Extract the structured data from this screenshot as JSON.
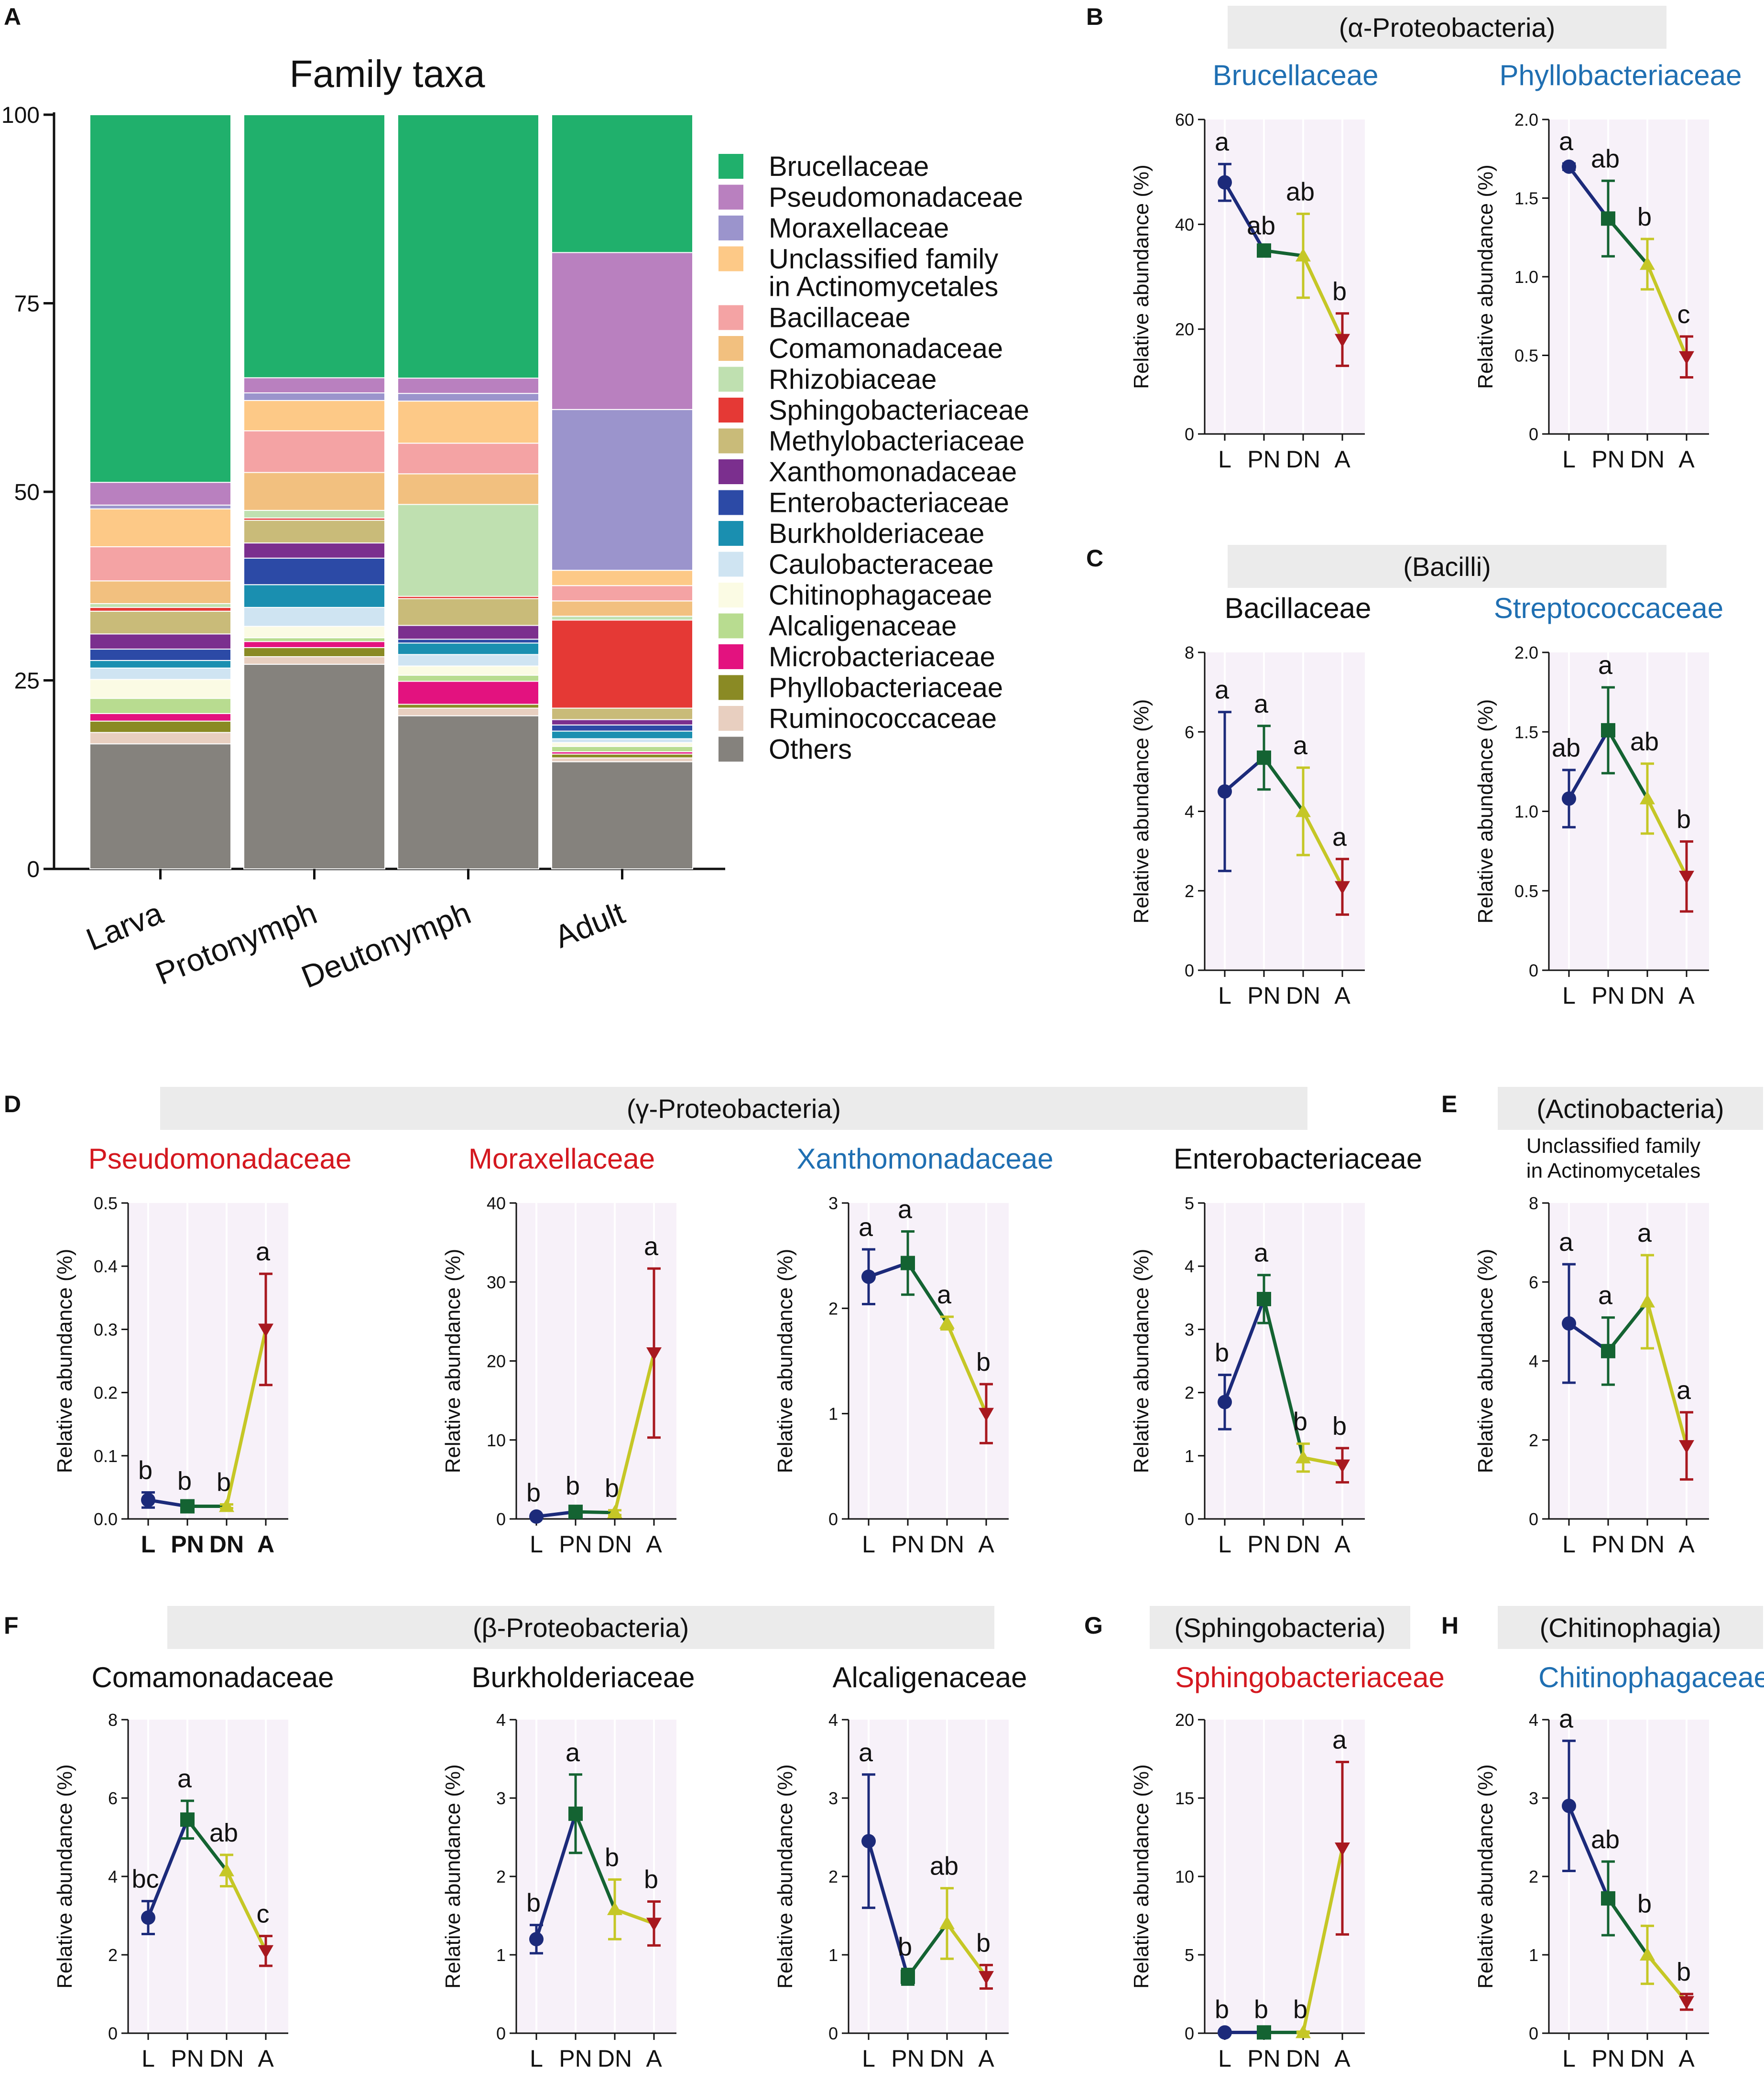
{
  "chart_data": [
    {
      "panel": "A",
      "type": "stacked-bar",
      "title": "Family taxa",
      "categories": [
        "Larva",
        "Protonymph",
        "Deutonymph",
        "Adult"
      ],
      "ylim": [
        0,
        100
      ],
      "yticks": [
        0,
        25,
        50,
        75,
        100
      ],
      "series": [
        {
          "name": "Others",
          "color": "#85827d",
          "values": [
            16.5,
            27,
            20,
            14
          ]
        },
        {
          "name": "Ruminococcaceae",
          "color": "#e8cfc0",
          "values": [
            1.5,
            1,
            1,
            0.5
          ]
        },
        {
          "name": "Phyllobacteriaceae",
          "color": "#8a8a24",
          "values": [
            1.5,
            1.2,
            0.5,
            0.5
          ]
        },
        {
          "name": "Microbacteriaceae",
          "color": "#e3127f",
          "values": [
            1,
            0.8,
            3,
            0.3
          ]
        },
        {
          "name": "Alcaligenaceae",
          "color": "#b8dc90",
          "values": [
            2,
            0.5,
            0.8,
            0.7
          ]
        },
        {
          "name": "Chitinophagaceae",
          "color": "#fbfbe4",
          "values": [
            2.5,
            1.5,
            1.2,
            0.5
          ]
        },
        {
          "name": "Caulobacteraceae",
          "color": "#cfe4f2",
          "values": [
            1.5,
            2.5,
            1.5,
            0.5
          ]
        },
        {
          "name": "Burkholderiaceae",
          "color": "#1a8fb0",
          "values": [
            1,
            3,
            1.5,
            1
          ]
        },
        {
          "name": "Enterobacteriaceae",
          "color": "#2c4aa6",
          "values": [
            1.5,
            3.5,
            0.5,
            0.8
          ]
        },
        {
          "name": "Xanthomonadaceae",
          "color": "#7b2f8e",
          "values": [
            2,
            2,
            1.8,
            0.7
          ]
        },
        {
          "name": "Methylobacteriaceae",
          "color": "#c9bb79",
          "values": [
            3,
            3,
            3.5,
            1.5
          ]
        },
        {
          "name": "Sphingobacteriaceae",
          "color": "#e53935",
          "values": [
            0.5,
            0.3,
            0.3,
            11.5
          ]
        },
        {
          "name": "Rhizobiaceae",
          "color": "#bfe0b0",
          "values": [
            0.5,
            1,
            12,
            0.5
          ]
        },
        {
          "name": "Comamonadaceae",
          "color": "#f2c07f",
          "values": [
            3,
            5,
            4,
            2
          ]
        },
        {
          "name": "Bacillaceae",
          "color": "#f4a3a4",
          "values": [
            4.5,
            5.5,
            4,
            2
          ]
        },
        {
          "name": "Unclassified family in Actinomycetales",
          "color": "#fdc987",
          "values": [
            5,
            4,
            5.5,
            2
          ]
        },
        {
          "name": "Moraxellaceae",
          "color": "#9b94cc",
          "values": [
            0.5,
            1,
            1,
            21
          ]
        },
        {
          "name": "Pseudomonadaceae",
          "color": "#b980bf",
          "values": [
            3,
            2,
            2,
            20.5
          ]
        },
        {
          "name": "Brucellaceae",
          "color": "#20b06c",
          "values": [
            48.5,
            34.7,
            34.4,
            18
          ]
        }
      ],
      "legend_order": [
        "Brucellaceae",
        "Pseudomonadaceae",
        "Moraxellaceae",
        "Unclassified family in Actinomycetales",
        "Bacillaceae",
        "Comamonadaceae",
        "Rhizobiaceae",
        "Sphingobacteriaceae",
        "Methylobacteriaceae",
        "Xanthomonadaceae",
        "Enterobacteriaceae",
        "Burkholderiaceae",
        "Caulobacteraceae",
        "Chitinophagaceae",
        "Alcaligenaceae",
        "Microbacteriaceae",
        "Phyllobacteriaceae",
        "Ruminococcaceae",
        "Others"
      ],
      "legend_lines": [
        [
          "Brucellaceae"
        ],
        [
          "Pseudomonadaceae"
        ],
        [
          "Moraxellaceae"
        ],
        [
          "Unclassified family",
          "in Actinomycetales"
        ],
        [
          "Bacillaceae"
        ],
        [
          "Comamonadaceae"
        ],
        [
          "Rhizobiaceae"
        ],
        [
          "Sphingobacteriaceae"
        ],
        [
          "Methylobacteriaceae"
        ],
        [
          "Xanthomonadaceae"
        ],
        [
          "Enterobacteriaceae"
        ],
        [
          "Burkholderiaceae"
        ],
        [
          "Caulobacteraceae"
        ],
        [
          "Chitinophagaceae"
        ],
        [
          "Alcaligenaceae"
        ],
        [
          "Microbacteriaceae"
        ],
        [
          "Phyllobacteriaceae"
        ],
        [
          "Ruminococcaceae"
        ],
        [
          "Others"
        ]
      ]
    },
    {
      "panel": "B",
      "type": "line",
      "class": "(α-Proteobacteria)",
      "title": "Brucellaceae",
      "title_color": "blue",
      "ylabel": "Relative abundance (%)",
      "ylim": [
        0,
        60
      ],
      "yticks": [
        "0",
        "20",
        "40",
        "60"
      ],
      "x": [
        "L",
        "PN",
        "DN",
        "A"
      ],
      "values": [
        48,
        35,
        34,
        18
      ],
      "errors": [
        3.5,
        0.5,
        8,
        5
      ],
      "letters": [
        "a",
        "ab",
        "ab",
        "b"
      ]
    },
    {
      "panel": "B",
      "type": "line",
      "title": "Phyllobacteriaceae",
      "title_color": "blue",
      "ylabel": "Relative abundance (%)",
      "ylim": [
        0,
        2
      ],
      "yticks": [
        "0",
        "0.5",
        "1.0",
        "1.5",
        "2.0"
      ],
      "x": [
        "L",
        "PN",
        "DN",
        "A"
      ],
      "values": [
        1.7,
        1.37,
        1.08,
        0.49
      ],
      "errors": [
        0.02,
        0.24,
        0.16,
        0.13
      ],
      "letters": [
        "a",
        "ab",
        "b",
        "c"
      ]
    },
    {
      "panel": "C",
      "type": "line",
      "class": "(Bacilli)",
      "title": "Bacillaceae",
      "title_color": "black",
      "ylabel": "Relative abundance (%)",
      "ylim": [
        0,
        8
      ],
      "yticks": [
        "0",
        "2",
        "4",
        "6",
        "8"
      ],
      "x": [
        "L",
        "PN",
        "DN",
        "A"
      ],
      "values": [
        4.5,
        5.35,
        4.0,
        2.1
      ],
      "errors": [
        2.0,
        0.8,
        1.1,
        0.7
      ],
      "letters": [
        "a",
        "a",
        "a",
        "a"
      ]
    },
    {
      "panel": "C",
      "type": "line",
      "title": "Streptococcaceae",
      "title_color": "blue",
      "ylabel": "Relative abundance (%)",
      "ylim": [
        0,
        2
      ],
      "yticks": [
        "0",
        "0.5",
        "1.0",
        "1.5",
        "2.0"
      ],
      "x": [
        "L",
        "PN",
        "DN",
        "A"
      ],
      "values": [
        1.08,
        1.51,
        1.08,
        0.59
      ],
      "errors": [
        0.18,
        0.27,
        0.22,
        0.22
      ],
      "letters": [
        "ab",
        "a",
        "ab",
        "b"
      ]
    },
    {
      "panel": "D",
      "type": "line",
      "class": "(γ-Proteobacteria)",
      "title": "Pseudomonadaceae",
      "title_color": "red",
      "ylabel": "Relative abundance (%)",
      "ylim": [
        0,
        0.5
      ],
      "yticks": [
        "0.0",
        "0.1",
        "0.2",
        "0.3",
        "0.4",
        "0.5"
      ],
      "x": [
        "L",
        "PN",
        "DN",
        "A"
      ],
      "values": [
        0.03,
        0.02,
        0.02,
        0.3
      ],
      "errors": [
        0.012,
        0.005,
        0.003,
        0.088
      ],
      "letters": [
        "b",
        "b",
        "b",
        "a"
      ],
      "bold_x": true
    },
    {
      "panel": "D",
      "type": "line",
      "title": "Moraxellaceae",
      "title_color": "red",
      "ylabel": "Relative abundance (%)",
      "ylim": [
        0,
        40
      ],
      "yticks": [
        "0",
        "10",
        "20",
        "30",
        "40"
      ],
      "x": [
        "L",
        "PN",
        "DN",
        "A"
      ],
      "values": [
        0.3,
        0.9,
        0.8,
        21
      ],
      "errors": [
        0.2,
        0.5,
        0.3,
        10.7
      ],
      "letters": [
        "b",
        "b",
        "b",
        "a"
      ]
    },
    {
      "panel": "D",
      "type": "line",
      "title": "Xanthomonadaceae",
      "title_color": "blue",
      "ylabel": "Relative abundance (%)",
      "ylim": [
        0,
        3
      ],
      "yticks": [
        "0",
        "1",
        "2",
        "3"
      ],
      "x": [
        "L",
        "PN",
        "DN",
        "A"
      ],
      "values": [
        2.3,
        2.43,
        1.86,
        1.0
      ],
      "errors": [
        0.26,
        0.3,
        0.06,
        0.28
      ],
      "letters": [
        "a",
        "a",
        "a",
        "b"
      ]
    },
    {
      "panel": "D",
      "type": "line",
      "title": "Enterobacteriaceae",
      "title_color": "black",
      "ylabel": "Relative abundance (%)",
      "ylim": [
        0,
        5
      ],
      "yticks": [
        "0",
        "1",
        "2",
        "3",
        "4",
        "5"
      ],
      "x": [
        "L",
        "PN",
        "DN",
        "A"
      ],
      "values": [
        1.85,
        3.48,
        0.97,
        0.85
      ],
      "errors": [
        0.43,
        0.38,
        0.22,
        0.27
      ],
      "letters": [
        "b",
        "a",
        "b",
        "b"
      ]
    },
    {
      "panel": "E",
      "type": "line",
      "class": "(Actinobacteria)",
      "title": "Unclassified family",
      "title2": "in Actinomycetales",
      "title_color": "black",
      "ylabel": "Relative abundance (%)",
      "ylim": [
        0,
        8
      ],
      "yticks": [
        "0",
        "2",
        "4",
        "6",
        "8"
      ],
      "x": [
        "L",
        "PN",
        "DN",
        "A"
      ],
      "values": [
        4.95,
        4.25,
        5.5,
        1.85
      ],
      "errors": [
        1.5,
        0.85,
        1.18,
        0.85
      ],
      "letters": [
        "a",
        "a",
        "a",
        "a"
      ]
    },
    {
      "panel": "F",
      "type": "line",
      "class": "(β-Proteobacteria)",
      "title": "Comamonadaceae",
      "title_color": "black",
      "ylabel": "Relative abundance (%)",
      "ylim": [
        0,
        8
      ],
      "yticks": [
        "0",
        "2",
        "4",
        "6",
        "8"
      ],
      "x": [
        "L",
        "PN",
        "DN",
        "A"
      ],
      "values": [
        2.95,
        5.45,
        4.15,
        2.1
      ],
      "errors": [
        0.42,
        0.48,
        0.4,
        0.38
      ],
      "letters": [
        "bc",
        "a",
        "ab",
        "c"
      ]
    },
    {
      "panel": "F",
      "type": "line",
      "title": "Burkholderiaceae",
      "title_color": "black",
      "ylabel": "Relative abundance (%)",
      "ylim": [
        0,
        4
      ],
      "yticks": [
        "0",
        "1",
        "2",
        "3",
        "4"
      ],
      "x": [
        "L",
        "PN",
        "DN",
        "A"
      ],
      "values": [
        1.2,
        2.8,
        1.58,
        1.4
      ],
      "errors": [
        0.18,
        0.5,
        0.38,
        0.28
      ],
      "letters": [
        "b",
        "a",
        "b",
        "b"
      ]
    },
    {
      "panel": "F",
      "type": "line",
      "title": "Alcaligenaceae",
      "title_color": "black",
      "ylabel": "Relative abundance (%)",
      "ylim": [
        0,
        4
      ],
      "yticks": [
        "0",
        "1",
        "2",
        "3",
        "4"
      ],
      "x": [
        "L",
        "PN",
        "DN",
        "A"
      ],
      "values": [
        2.45,
        0.72,
        1.4,
        0.72
      ],
      "errors": [
        0.85,
        0.1,
        0.45,
        0.15
      ],
      "letters": [
        "a",
        "b",
        "ab",
        "b"
      ]
    },
    {
      "panel": "G",
      "type": "line",
      "class": "(Sphingobacteria)",
      "title": "Sphingobacteriaceae",
      "title_color": "red",
      "ylabel": "Relative abundance (%)",
      "ylim": [
        0,
        20
      ],
      "yticks": [
        "0",
        "5",
        "10",
        "15",
        "20"
      ],
      "x": [
        "L",
        "PN",
        "DN",
        "A"
      ],
      "values": [
        0.05,
        0.05,
        0.05,
        11.8
      ],
      "errors": [
        0.05,
        0.05,
        0.05,
        5.5
      ],
      "letters": [
        "b",
        "b",
        "b",
        "a"
      ]
    },
    {
      "panel": "H",
      "type": "line",
      "class": "(Chitinophagia)",
      "title": "Chitinophagaceae",
      "title_color": "blue",
      "ylabel": "Relative abundance (%)",
      "ylim": [
        0,
        4
      ],
      "yticks": [
        "0",
        "1",
        "2",
        "3",
        "4"
      ],
      "x": [
        "L",
        "PN",
        "DN",
        "A"
      ],
      "values": [
        2.9,
        1.72,
        1.0,
        0.4
      ],
      "errors": [
        0.83,
        0.47,
        0.37,
        0.1
      ],
      "letters": [
        "a",
        "ab",
        "b",
        "b"
      ]
    }
  ]
}
